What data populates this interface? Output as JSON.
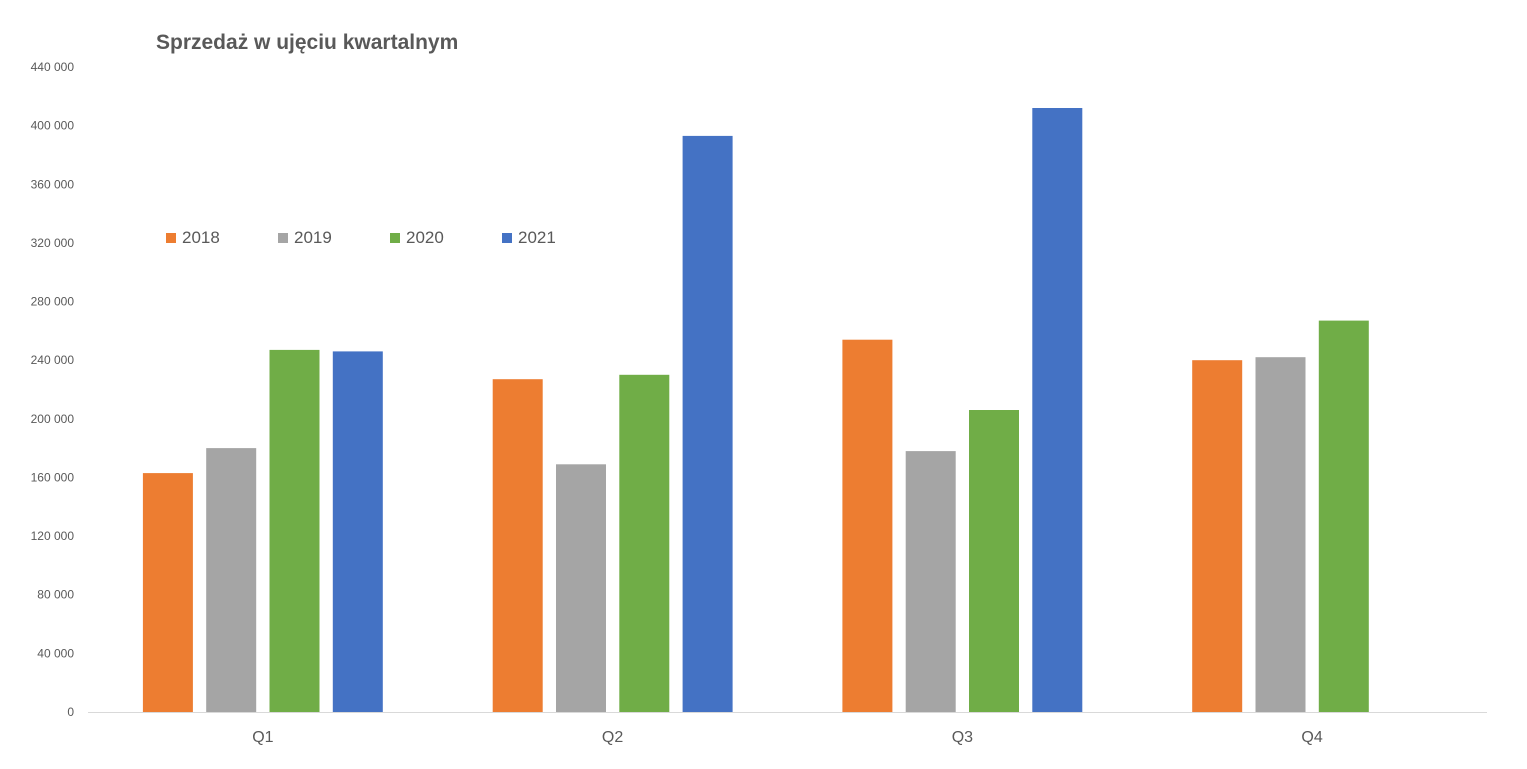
{
  "chart_data": {
    "type": "bar",
    "title": "Sprzedaż w ujęciu kwartalnym",
    "xlabel": "",
    "ylabel": "",
    "categories": [
      "Q1",
      "Q2",
      "Q3",
      "Q4"
    ],
    "series": [
      {
        "name": "2018",
        "color": "#ED7D31",
        "values": [
          163000,
          227000,
          254000,
          240000
        ]
      },
      {
        "name": "2019",
        "color": "#A5A5A5",
        "values": [
          180000,
          169000,
          178000,
          242000
        ]
      },
      {
        "name": "2020",
        "color": "#70AD47",
        "values": [
          247000,
          230000,
          206000,
          267000
        ]
      },
      {
        "name": "2021",
        "color": "#4472C4",
        "values": [
          246000,
          393000,
          412000,
          null
        ]
      }
    ],
    "ylim": [
      0,
      440000
    ],
    "yticks": [
      "0",
      "40 000",
      "80 000",
      "120 000",
      "160 000",
      "200 000",
      "240 000",
      "280 000",
      "320 000",
      "360 000",
      "400 000",
      "440 000"
    ],
    "ytick_values": [
      0,
      40000,
      80000,
      120000,
      160000,
      200000,
      240000,
      280000,
      320000,
      360000,
      400000,
      440000
    ],
    "grid": false,
    "legend_position": "inside-upper-left",
    "axis_color": "#D9D9D9",
    "text_color": "#595959"
  }
}
